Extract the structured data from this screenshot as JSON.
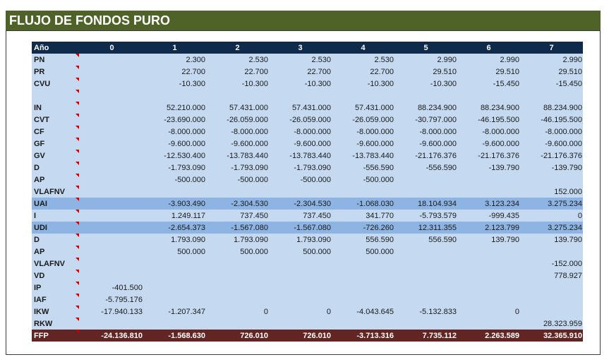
{
  "sheet": {
    "title": "FLUJO DE FONDOS PURO"
  },
  "table": {
    "header": [
      "Año",
      "0",
      "1",
      "2",
      "3",
      "4",
      "5",
      "6",
      "7"
    ],
    "rows": [
      {
        "label": "PN",
        "style": "norm",
        "values": [
          "",
          "2.300",
          "2.530",
          "2.530",
          "2.530",
          "2.990",
          "2.990",
          "2.990"
        ]
      },
      {
        "label": "PR",
        "style": "norm",
        "values": [
          "",
          "22.700",
          "22.700",
          "22.700",
          "22.700",
          "29.510",
          "29.510",
          "29.510"
        ]
      },
      {
        "label": "CVU",
        "style": "norm",
        "values": [
          "",
          "-10.300",
          "-10.300",
          "-10.300",
          "-10.300",
          "-10.300",
          "-15.450",
          "-15.450"
        ]
      },
      {
        "label": "",
        "style": "norm",
        "values": [
          "",
          "",
          "",
          "",
          "",
          "",
          "",
          ""
        ]
      },
      {
        "label": "IN",
        "style": "norm",
        "values": [
          "",
          "52.210.000",
          "57.431.000",
          "57.431.000",
          "57.431.000",
          "88.234.900",
          "88.234.900",
          "88.234.900"
        ]
      },
      {
        "label": "CVT",
        "style": "norm",
        "values": [
          "",
          "-23.690.000",
          "-26.059.000",
          "-26.059.000",
          "-26.059.000",
          "-30.797.000",
          "-46.195.500",
          "-46.195.500"
        ]
      },
      {
        "label": "CF",
        "style": "norm",
        "values": [
          "",
          "-8.000.000",
          "-8.000.000",
          "-8.000.000",
          "-8.000.000",
          "-8.000.000",
          "-8.000.000",
          "-8.000.000"
        ]
      },
      {
        "label": "GF",
        "style": "norm",
        "values": [
          "",
          "-9.600.000",
          "-9.600.000",
          "-9.600.000",
          "-9.600.000",
          "-9.600.000",
          "-9.600.000",
          "-9.600.000"
        ]
      },
      {
        "label": "GV",
        "style": "norm",
        "values": [
          "",
          "-12.530.400",
          "-13.783.440",
          "-13.783.440",
          "-13.783.440",
          "-21.176.376",
          "-21.176.376",
          "-21.176.376"
        ]
      },
      {
        "label": "D",
        "style": "norm",
        "values": [
          "",
          "-1.793.090",
          "-1.793.090",
          "-1.793.090",
          "-556.590",
          "-556.590",
          "-139.790",
          "-139.790"
        ]
      },
      {
        "label": "AP",
        "style": "norm",
        "values": [
          "",
          "-500.000",
          "-500.000",
          "-500.000",
          "-500.000",
          "",
          "",
          ""
        ]
      },
      {
        "label": "VLAFNV",
        "style": "norm",
        "values": [
          "",
          "",
          "",
          "",
          "",
          "",
          "",
          "152.000"
        ]
      },
      {
        "label": "UAI",
        "style": "hl",
        "values": [
          "",
          "-3.903.490",
          "-2.304.530",
          "-2.304.530",
          "-1.068.030",
          "18.104.934",
          "3.123.234",
          "3.275.234"
        ]
      },
      {
        "label": "I",
        "style": "norm",
        "values": [
          "",
          "1.249.117",
          "737.450",
          "737.450",
          "341.770",
          "-5.793.579",
          "-999.435",
          "0"
        ]
      },
      {
        "label": "UDI",
        "style": "hl",
        "values": [
          "",
          "-2.654.373",
          "-1.567.080",
          "-1.567.080",
          "-726.260",
          "12.311.355",
          "2.123.799",
          "3.275.234"
        ]
      },
      {
        "label": "D",
        "style": "norm",
        "values": [
          "",
          "1.793.090",
          "1.793.090",
          "1.793.090",
          "556.590",
          "556.590",
          "139.790",
          "139.790"
        ]
      },
      {
        "label": "AP",
        "style": "norm",
        "values": [
          "",
          "500.000",
          "500.000",
          "500.000",
          "500.000",
          "",
          "",
          ""
        ]
      },
      {
        "label": "VLAFNV",
        "style": "norm",
        "values": [
          "",
          "",
          "",
          "",
          "",
          "",
          "",
          "-152.000"
        ]
      },
      {
        "label": "VD",
        "style": "norm",
        "values": [
          "",
          "",
          "",
          "",
          "",
          "",
          "",
          "778.927"
        ]
      },
      {
        "label": "IP",
        "style": "norm",
        "values": [
          "-401.500",
          "",
          "",
          "",
          "",
          "",
          "",
          ""
        ]
      },
      {
        "label": "IAF",
        "style": "norm",
        "values": [
          "-5.795.176",
          "",
          "",
          "",
          "",
          "",
          "",
          ""
        ]
      },
      {
        "label": "IKW",
        "style": "norm",
        "values": [
          "-17.940.133",
          "-1.207.347",
          "0",
          "0",
          "-4.043.645",
          "-5.132.833",
          "0",
          ""
        ]
      },
      {
        "label": "RKW",
        "style": "norm",
        "values": [
          "",
          "",
          "",
          "",
          "",
          "",
          "",
          "28.323.959"
        ]
      },
      {
        "label": "FFP",
        "style": "total",
        "values": [
          "-24.136.810",
          "-1.568.630",
          "726.010",
          "726.010",
          "-3.713.316",
          "7.735.112",
          "2.263.589",
          "32.365.910"
        ]
      }
    ]
  }
}
